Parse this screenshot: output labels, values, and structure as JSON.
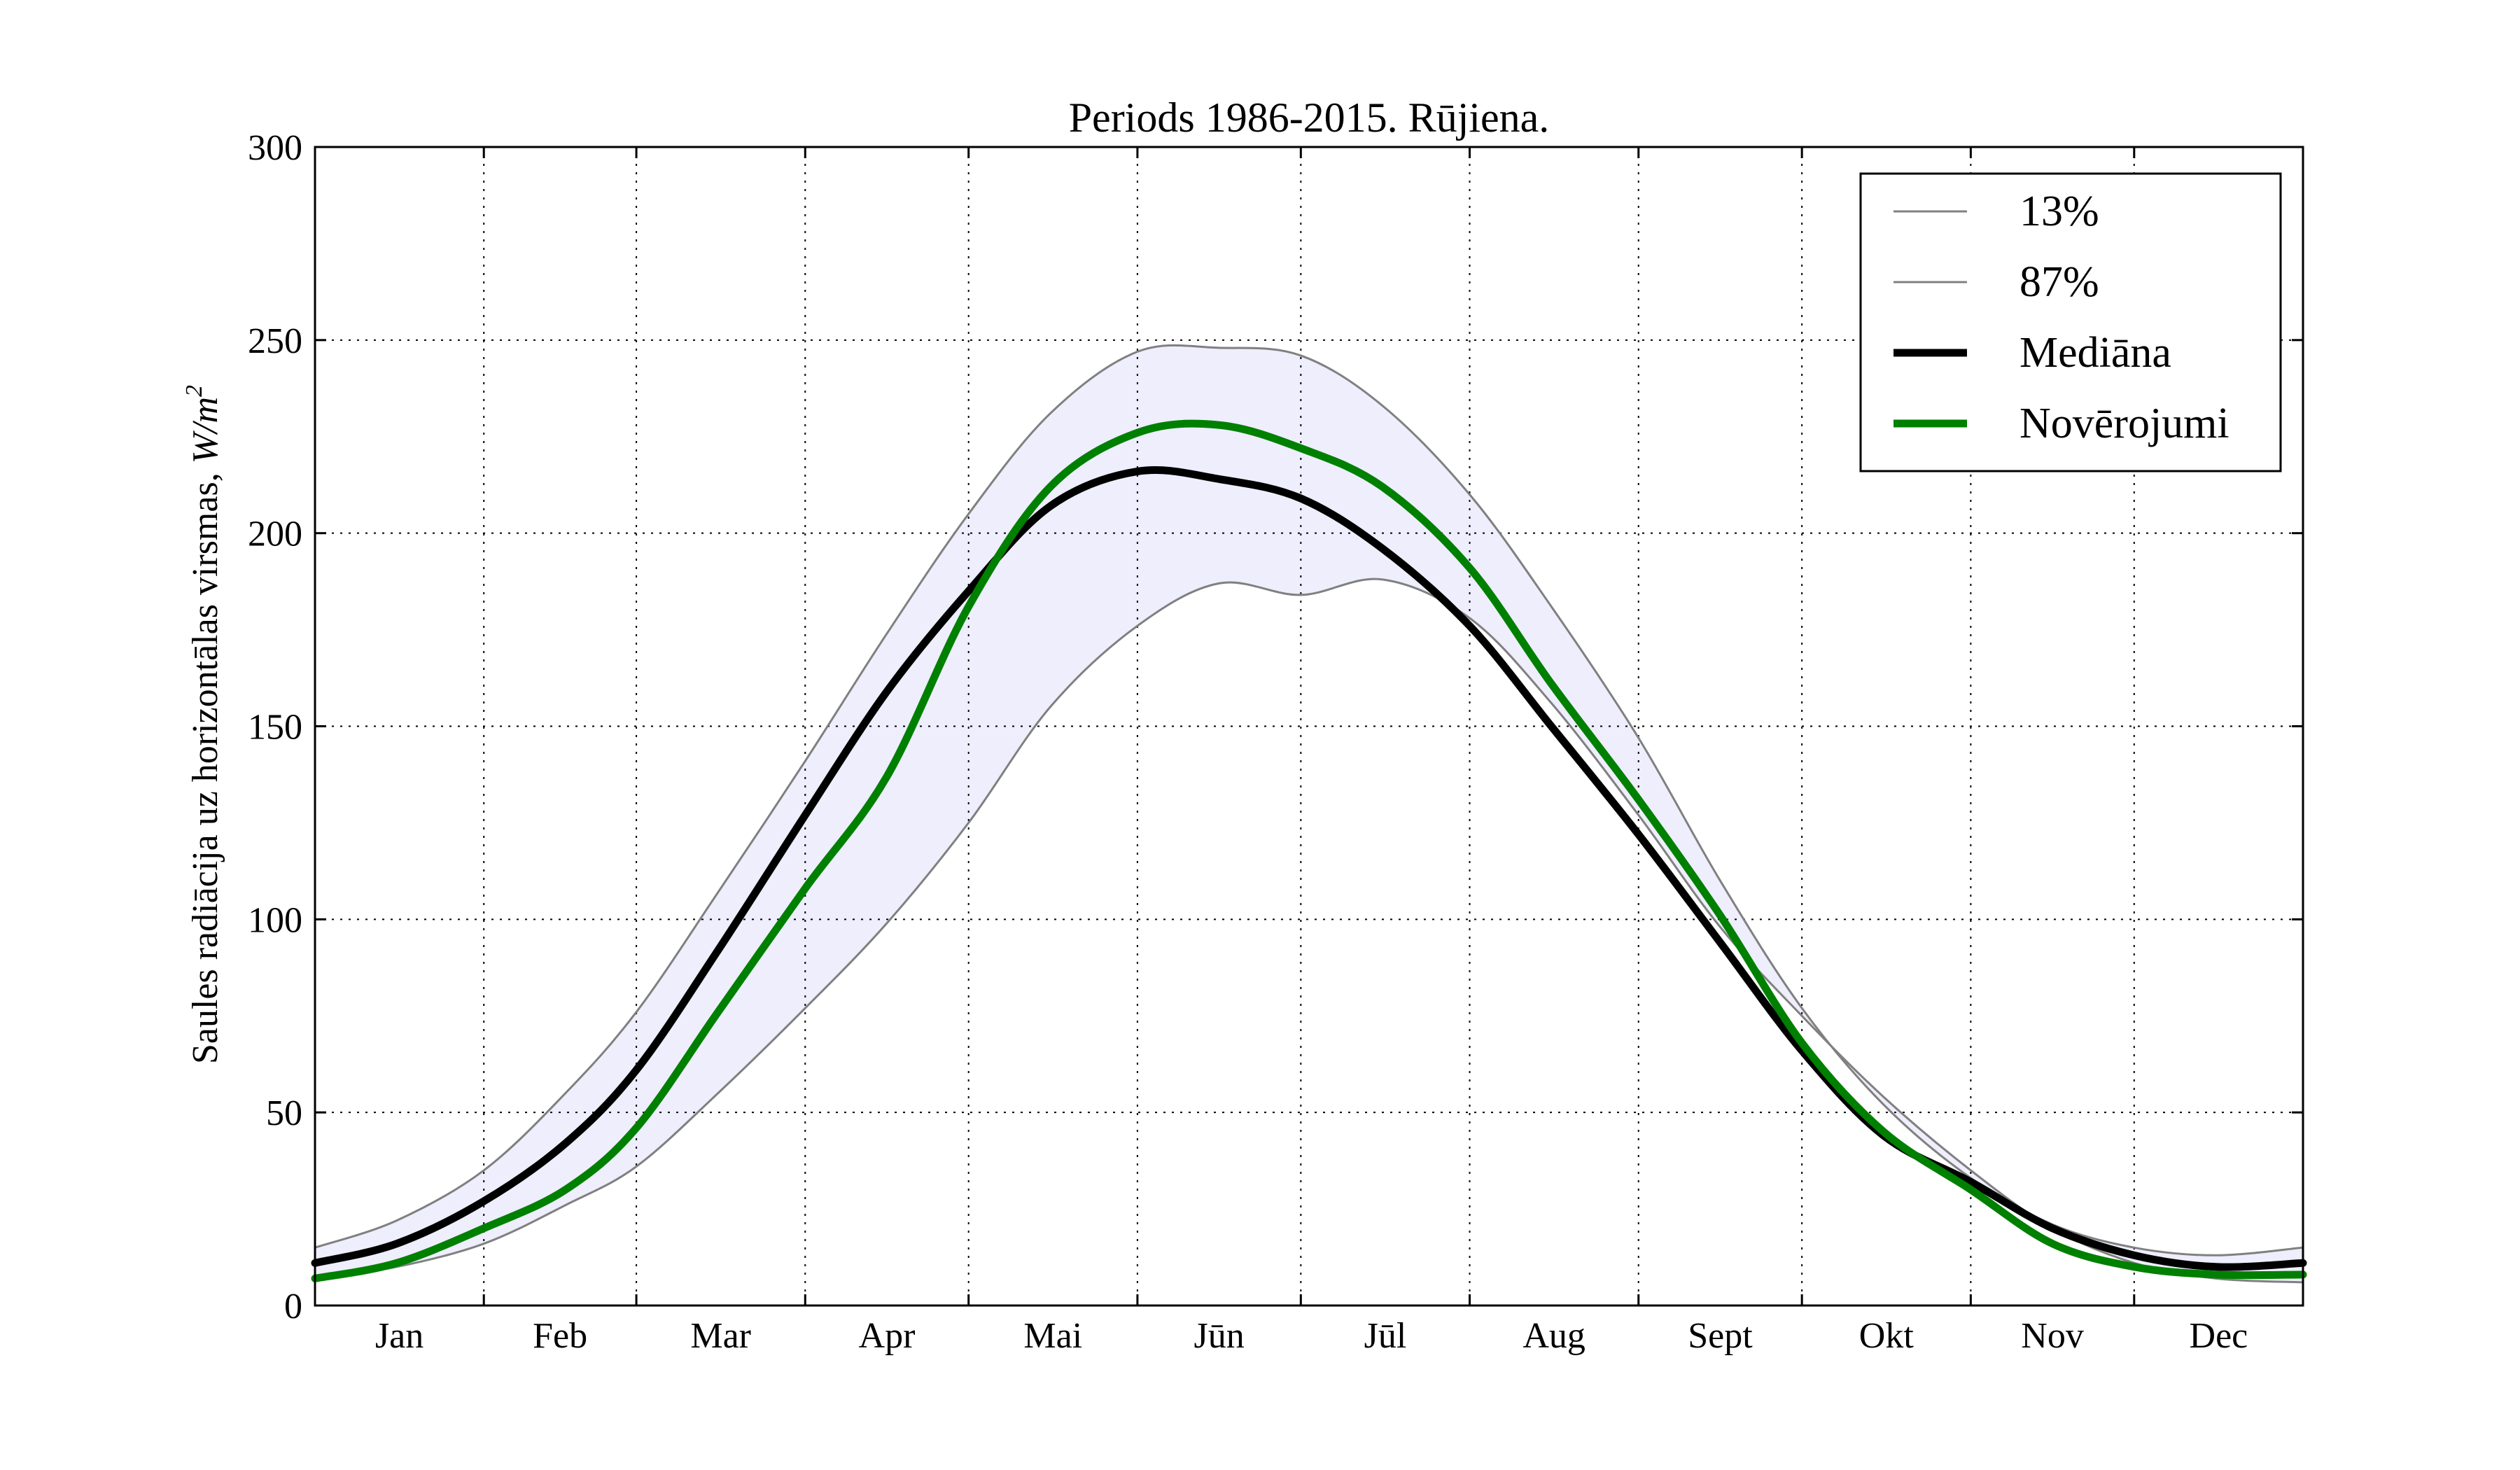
{
  "chart_data": {
    "type": "line",
    "title": "Periods 1986-2015. Rūjiena.",
    "xlabel": "",
    "ylabel": "Saules radiācija uz horizontālas virsmas, ",
    "ylabel_unit": "W/m",
    "ylabel_unit_exp": "2",
    "ylim": [
      0,
      300
    ],
    "yticks": [
      0,
      50,
      100,
      150,
      200,
      250,
      300
    ],
    "xlim": [
      0,
      365
    ],
    "month_boundaries": [
      31,
      59,
      90,
      120,
      151,
      181,
      212,
      243,
      273,
      304,
      334
    ],
    "months": [
      "Jan",
      "Feb",
      "Mar",
      "Apr",
      "Mai",
      "Jūn",
      "Jūl",
      "Aug",
      "Sept",
      "Okt",
      "Nov",
      "Dec"
    ],
    "grid": true,
    "legend_position": "top-right",
    "band_fill_color": "#eeeefc",
    "x": [
      0,
      15,
      31,
      46,
      59,
      74,
      90,
      105,
      120,
      135,
      151,
      166,
      181,
      196,
      212,
      227,
      243,
      258,
      273,
      288,
      304,
      319,
      334,
      349,
      365
    ],
    "series": [
      {
        "name": "13%",
        "color": "#808080",
        "width": 3,
        "values": [
          7,
          10,
          16,
          26,
          36,
          55,
          77,
          99,
          125,
          155,
          176,
          187,
          184,
          188,
          178,
          156,
          127,
          98,
          75,
          54,
          35,
          20,
          11,
          7,
          6
        ]
      },
      {
        "name": "87%",
        "color": "#808080",
        "width": 3,
        "values": [
          15,
          22,
          35,
          55,
          76,
          107,
          141,
          174,
          205,
          231,
          247,
          248,
          246,
          233,
          210,
          181,
          147,
          110,
          77,
          52,
          33,
          21,
          15,
          13,
          15
        ]
      },
      {
        "name": "Mediāna",
        "color": "#000000",
        "width": 11,
        "values": [
          11,
          16,
          27,
          42,
          61,
          92,
          127,
          159,
          185,
          207,
          216,
          214,
          209,
          196,
          176,
          150,
          122,
          94,
          66,
          44,
          32,
          20,
          13,
          10,
          11
        ]
      },
      {
        "name": "Novērojumi",
        "color": "#008000",
        "width": 11,
        "values": [
          7,
          11,
          20,
          30,
          46,
          76,
          108,
          137,
          181,
          212,
          226,
          228,
          222,
          212,
          191,
          161,
          131,
          101,
          68,
          45,
          30,
          16,
          10,
          8,
          8
        ]
      }
    ]
  }
}
